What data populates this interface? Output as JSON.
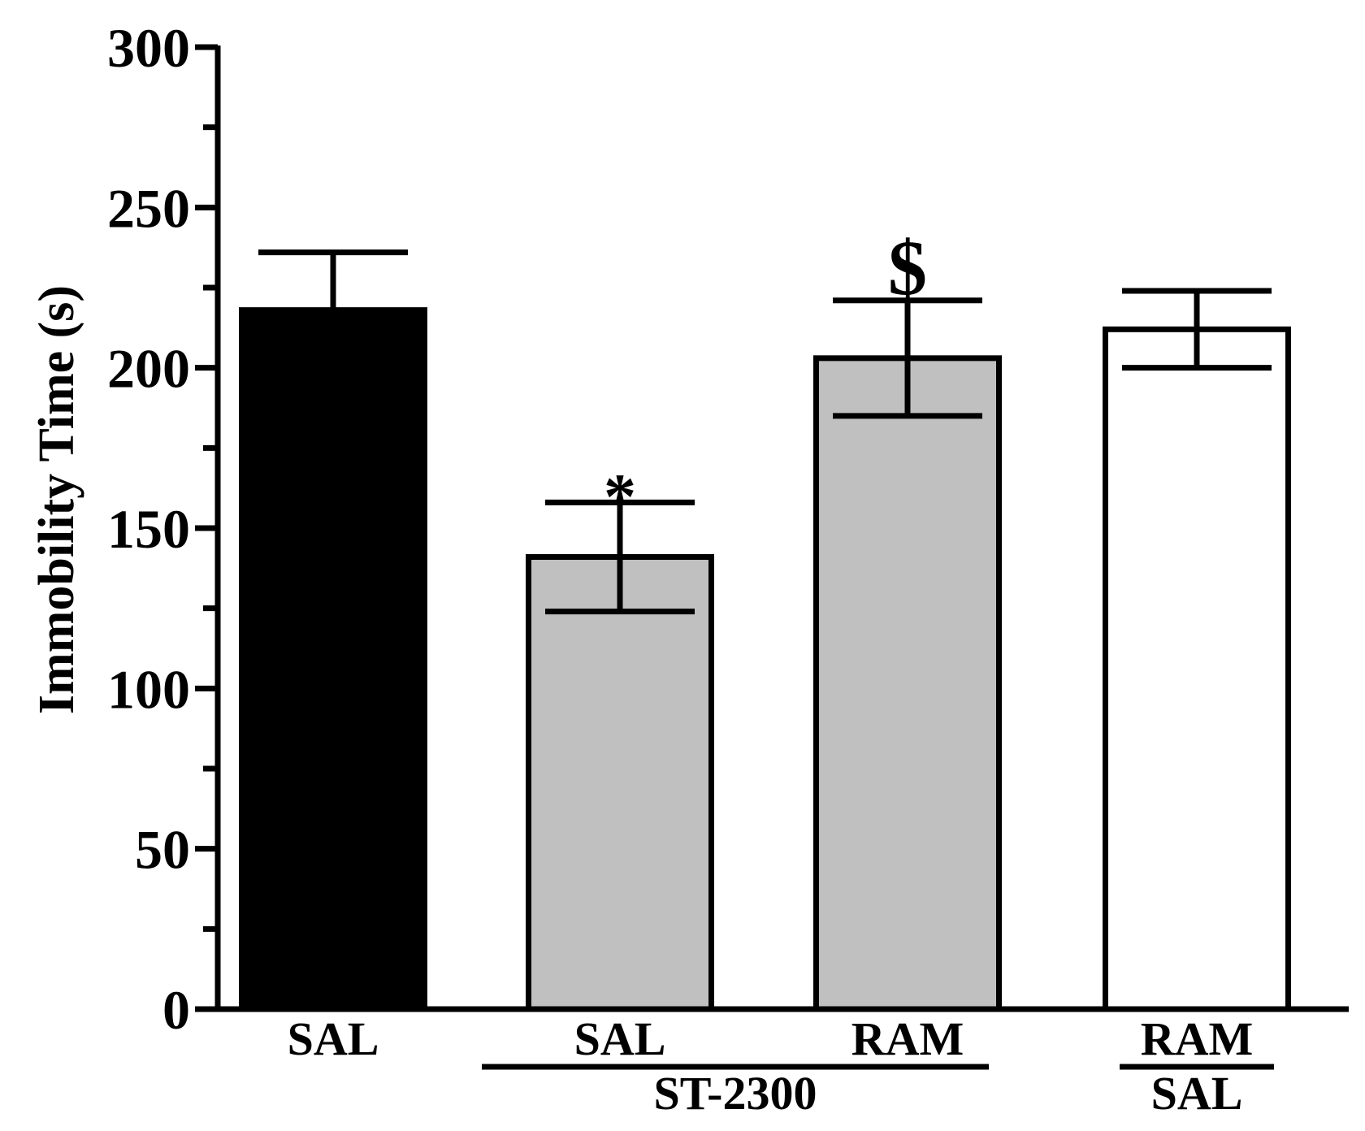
{
  "chart_data": {
    "type": "bar",
    "title": "",
    "ylabel": "Immobility Time (s)",
    "xlabel": "",
    "ylim": [
      0,
      300
    ],
    "yticks": [
      0,
      50,
      100,
      150,
      200,
      250,
      300
    ],
    "y_minor_step": 25,
    "categories": [
      "SAL",
      "SAL",
      "RAM",
      "RAM"
    ],
    "bars": [
      {
        "label": "SAL",
        "value": 218,
        "error": 18,
        "fill": "#000000",
        "annotation": ""
      },
      {
        "label": "SAL",
        "value": 141,
        "error": 17,
        "fill": "#c0c0c0",
        "annotation": "*"
      },
      {
        "label": "RAM",
        "value": 203,
        "error": 18,
        "fill": "#c0c0c0",
        "annotation": "$"
      },
      {
        "label": "RAM",
        "value": 212,
        "error": 12,
        "fill": "#ffffff",
        "annotation": ""
      }
    ],
    "groups": [
      {
        "label": "ST-2300",
        "bars": [
          1,
          2
        ]
      },
      {
        "label": "SAL",
        "bars": [
          3
        ]
      }
    ],
    "grid": false,
    "legend": "none"
  }
}
